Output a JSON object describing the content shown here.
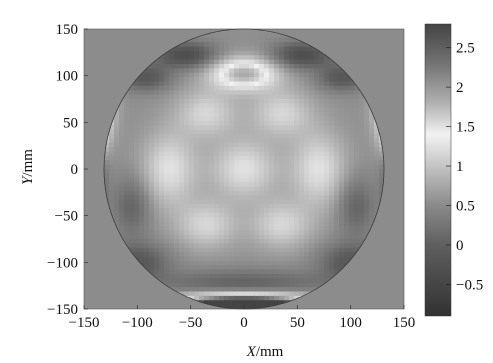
{
  "chart_data": {
    "type": "heatmap",
    "title": "",
    "xlabel": {
      "var": "X",
      "unit": "mm"
    },
    "ylabel": {
      "var": "Y",
      "unit": "mm"
    },
    "xlim": [
      -150,
      150
    ],
    "ylim": [
      -150,
      150
    ],
    "x_ticks": [
      -150,
      -100,
      -50,
      0,
      50,
      100,
      150
    ],
    "x_tick_labels": [
      "−150",
      "−100",
      "−50",
      "0",
      "50",
      "100",
      "150"
    ],
    "y_ticks": [
      150,
      100,
      50,
      0,
      -50,
      -100,
      -150
    ],
    "y_tick_labels": [
      "150",
      "100",
      "50",
      "0",
      "−50",
      "−100",
      "−150"
    ],
    "mask": "circle",
    "circle_radius": 150,
    "outside_fill": "#8c8c8c",
    "colorbar": {
      "min": -0.9,
      "max": 2.8,
      "ticks": [
        2.5,
        2,
        1.5,
        1,
        0.5,
        0,
        -0.5
      ],
      "tick_labels": [
        "2.5",
        "2",
        "1.5",
        "1",
        "0.5",
        "0",
        "−0.5"
      ],
      "stops": [
        {
          "value": -0.9,
          "color": "#323232"
        },
        {
          "value": 0.0,
          "color": "#5f5f5f"
        },
        {
          "value": 0.5,
          "color": "#8a8a8a"
        },
        {
          "value": 1.0,
          "color": "#c4c4c4"
        },
        {
          "value": 1.4,
          "color": "#f2f2f2"
        },
        {
          "value": 1.8,
          "color": "#b0b0b0"
        },
        {
          "value": 2.3,
          "color": "#737373"
        },
        {
          "value": 2.8,
          "color": "#444444"
        }
      ]
    },
    "field": {
      "base": 0.55,
      "features": [
        {
          "x": 0,
          "y": 0,
          "sx": 22,
          "sy": 22,
          "a": 0.7
        },
        {
          "x": -70,
          "y": 0,
          "sx": 18,
          "sy": 28,
          "a": 0.7
        },
        {
          "x": 70,
          "y": 0,
          "sx": 18,
          "sy": 28,
          "a": 0.7
        },
        {
          "x": -35,
          "y": -60,
          "sx": 20,
          "sy": 18,
          "a": 0.6
        },
        {
          "x": 35,
          "y": -60,
          "sx": 20,
          "sy": 18,
          "a": 0.6
        },
        {
          "x": -35,
          "y": 60,
          "sx": 20,
          "sy": 18,
          "a": 0.6
        },
        {
          "x": 35,
          "y": 60,
          "sx": 20,
          "sy": 18,
          "a": 0.6
        },
        {
          "x": 0,
          "y": 102,
          "sx": 22,
          "sy": 12,
          "a": 1.3
        },
        {
          "x": 0,
          "y": -145,
          "sx": 45,
          "sy": 7,
          "a": 3.3
        },
        {
          "x": 0,
          "y": -122,
          "sx": 60,
          "sy": 10,
          "a": -0.5
        },
        {
          "x": -55,
          "y": 122,
          "sx": 20,
          "sy": 10,
          "a": -0.9
        },
        {
          "x": 55,
          "y": 122,
          "sx": 20,
          "sy": 10,
          "a": -0.9
        },
        {
          "x": -133,
          "y": 70,
          "sx": 9,
          "sy": 25,
          "a": 0.8
        },
        {
          "x": 133,
          "y": 70,
          "sx": 9,
          "sy": 25,
          "a": 0.8
        },
        {
          "x": -140,
          "y": 35,
          "sx": 8,
          "sy": 18,
          "a": 1.0
        },
        {
          "x": 140,
          "y": 35,
          "sx": 8,
          "sy": 18,
          "a": 1.0
        },
        {
          "x": -145,
          "y": -10,
          "sx": 9,
          "sy": 30,
          "a": -1.1
        },
        {
          "x": 145,
          "y": -10,
          "sx": 9,
          "sy": 30,
          "a": -1.1
        },
        {
          "x": -92,
          "y": 98,
          "sx": 16,
          "sy": 10,
          "a": -0.7
        },
        {
          "x": 92,
          "y": 98,
          "sx": 16,
          "sy": 10,
          "a": -0.7
        },
        {
          "x": -100,
          "y": -100,
          "sx": 20,
          "sy": 14,
          "a": -0.7
        },
        {
          "x": 100,
          "y": -100,
          "sx": 20,
          "sy": 14,
          "a": -0.7
        },
        {
          "x": -105,
          "y": -40,
          "sx": 12,
          "sy": 22,
          "a": -0.5
        },
        {
          "x": 105,
          "y": -40,
          "sx": 12,
          "sy": 22,
          "a": -0.5
        }
      ]
    }
  }
}
